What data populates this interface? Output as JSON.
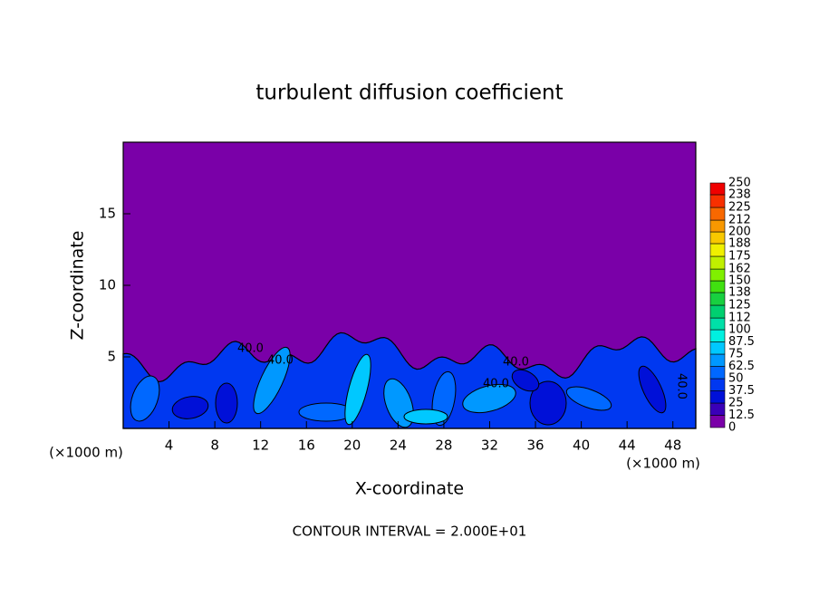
{
  "chart_data": {
    "type": "contour",
    "title": "turbulent diffusion coefficient",
    "x_label": "X-coordinate",
    "y_label": "Z-coordinate",
    "x_unit_labels": [
      "(×1000 m)",
      "(×1000 m)"
    ],
    "footnote": "CONTOUR INTERVAL = 2.000E+01",
    "contour_labels": [
      "40.0",
      "40.0",
      "40.0",
      "40.0",
      "40.0"
    ],
    "xlim": [
      0,
      50
    ],
    "xticks": [
      4,
      8,
      12,
      16,
      20,
      24,
      28,
      32,
      36,
      40,
      44,
      48
    ],
    "ylim": [
      0,
      20
    ],
    "yticks": [
      5,
      10,
      15
    ],
    "colorbar": {
      "levels": [
        0,
        12.5,
        25,
        37.5,
        50,
        62.5,
        75,
        87.5,
        100,
        112,
        125,
        138,
        150,
        162,
        175,
        188,
        200,
        212,
        225,
        238,
        250
      ],
      "colors": [
        "#7a00a8",
        "#3a00b8",
        "#0010d8",
        "#0038f0",
        "#0068ff",
        "#0098ff",
        "#00c8ff",
        "#00f0e0",
        "#00e0a8",
        "#00d070",
        "#18d040",
        "#40e010",
        "#80f000",
        "#c0f000",
        "#f0f000",
        "#f8c800",
        "#f89800",
        "#f86800",
        "#f83000",
        "#f00000"
      ]
    }
  }
}
